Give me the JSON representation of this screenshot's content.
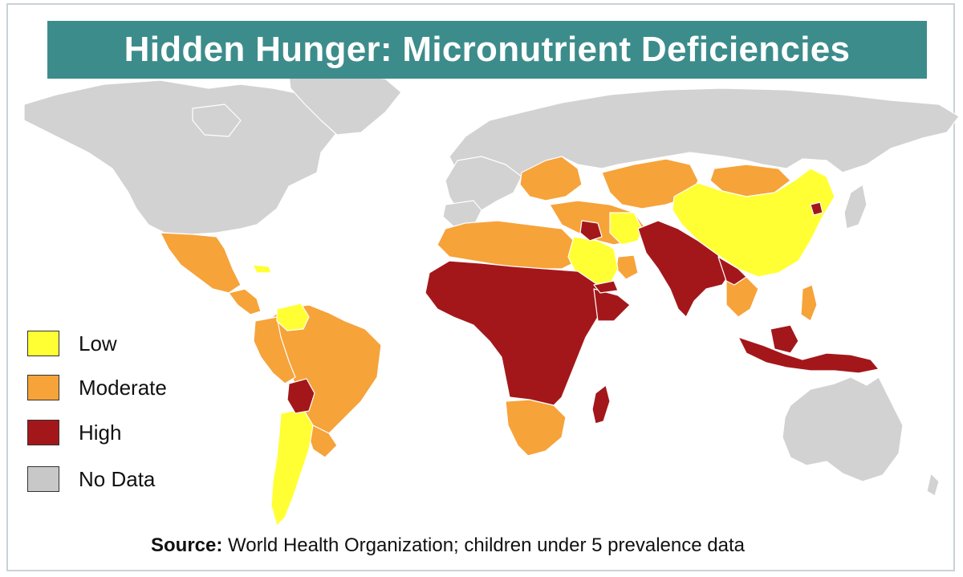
{
  "title": "Hidden Hunger: Micronutrient Deficiencies",
  "legend": {
    "items": [
      {
        "label": "Low",
        "color": "#ffff33"
      },
      {
        "label": "Moderate",
        "color": "#f6a33a"
      },
      {
        "label": "High",
        "color": "#a3171b"
      },
      {
        "label": "No Data",
        "color": "#c8c8c8"
      }
    ]
  },
  "source": {
    "label": "Source:",
    "text": "World Health Organization; children under 5 prevalence data"
  },
  "colors": {
    "title_bar": "#3d8c8c",
    "ocean": "#ffffff",
    "no_data": "#d2d2d2",
    "low": "#ffff33",
    "moderate": "#f6a33a",
    "high": "#a3171b"
  }
}
